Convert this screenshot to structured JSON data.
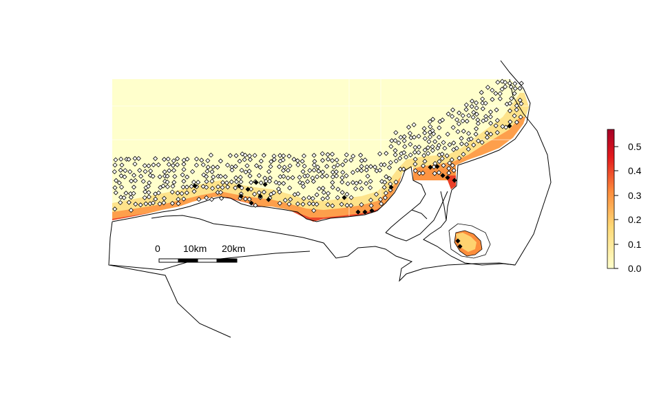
{
  "scale_bar": {
    "labels": [
      "0",
      "10km",
      "20km"
    ]
  },
  "legend": {
    "ticks": [
      "0.5",
      "0.4",
      "0.3",
      "0.2",
      "0.1",
      "0.0"
    ],
    "range": [
      0.0,
      0.56
    ],
    "color_low": "#ffffcc",
    "color_mid": "#fd8d3c",
    "color_high": "#a50026"
  },
  "map": {
    "land_color": "#ffffff",
    "outline_color": "#000000",
    "marker_open": "open-diamond",
    "marker_filled": "filled-diamond"
  }
}
